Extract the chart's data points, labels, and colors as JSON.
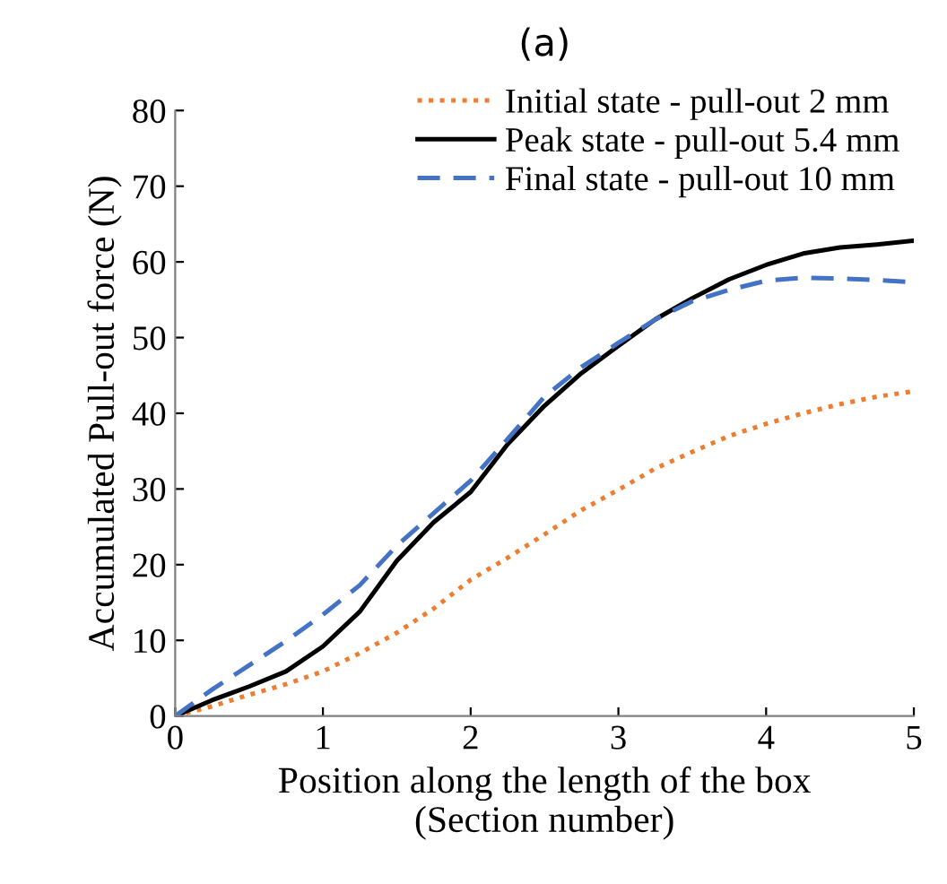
{
  "chart_data": {
    "type": "line",
    "title": "(a)",
    "xlabel": "Position along the length of the box\n(Section number)",
    "ylabel": "Accumulated Pull-out force (N)",
    "x": [
      0,
      0.25,
      0.5,
      0.75,
      1,
      1.25,
      1.5,
      1.75,
      2,
      2.25,
      2.5,
      2.75,
      3,
      3.25,
      3.5,
      3.75,
      4,
      4.25,
      4.5,
      4.75,
      5
    ],
    "series": [
      {
        "name": "Initial state - pull-out 2 mm",
        "color": "#ed7d31",
        "line_style": "dotted",
        "values": [
          0,
          1.3,
          2.8,
          4.2,
          5.9,
          8.3,
          11.0,
          14.2,
          18.0,
          20.9,
          24.0,
          27.2,
          29.9,
          32.7,
          34.9,
          37.0,
          38.6,
          40.0,
          41.2,
          42.2,
          42.9
        ]
      },
      {
        "name": "Peak state - pull-out 5.4 mm",
        "color": "#000000",
        "line_style": "solid",
        "values": [
          0,
          2.1,
          3.9,
          5.9,
          9.2,
          13.8,
          20.5,
          25.6,
          29.6,
          35.9,
          41.0,
          45.3,
          48.9,
          52.4,
          55.2,
          57.7,
          59.6,
          61.1,
          61.9,
          62.3,
          62.8
        ]
      },
      {
        "name": "Final state - pull-out 10 mm",
        "color": "#4472c4",
        "line_style": "dashed",
        "values": [
          0,
          3.5,
          6.7,
          9.9,
          13.4,
          17.3,
          22.5,
          26.8,
          31.1,
          36.6,
          42.2,
          46.1,
          49.3,
          52.4,
          54.8,
          56.3,
          57.5,
          57.9,
          57.8,
          57.6,
          57.3
        ]
      }
    ],
    "xlim": [
      0,
      5
    ],
    "xticks": [
      0,
      1,
      2,
      3,
      4,
      5
    ],
    "ylim": [
      0,
      80
    ],
    "yticks": [
      0,
      10,
      20,
      30,
      40,
      50,
      60,
      70,
      80
    ],
    "grid": false,
    "legend": "top right",
    "marker": "none"
  }
}
